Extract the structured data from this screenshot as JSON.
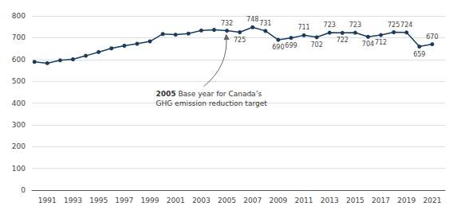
{
  "chart_data": {
    "type": "line",
    "x": [
      1990,
      1991,
      1992,
      1993,
      1994,
      1995,
      1996,
      1997,
      1998,
      1999,
      2000,
      2001,
      2002,
      2003,
      2004,
      2005,
      2006,
      2007,
      2008,
      2009,
      2010,
      2011,
      2012,
      2013,
      2014,
      2015,
      2016,
      2017,
      2018,
      2019,
      2020,
      2021
    ],
    "values": [
      589,
      583,
      596,
      601,
      617,
      634,
      651,
      663,
      672,
      683,
      717,
      714,
      719,
      733,
      736,
      732,
      725,
      748,
      731,
      690,
      699,
      711,
      702,
      723,
      722,
      723,
      704,
      712,
      725,
      724,
      659,
      670
    ],
    "value_labels": [
      null,
      null,
      null,
      null,
      null,
      null,
      null,
      null,
      null,
      null,
      null,
      null,
      null,
      null,
      null,
      "732",
      "725",
      "748",
      "731",
      "690",
      "699",
      "711",
      "702",
      "723",
      "722",
      "723",
      "704",
      "712",
      "725",
      "724",
      "659",
      "670"
    ],
    "color": "#1b3a5c",
    "marker": "circle",
    "xlim": [
      1989.8,
      2022.0
    ],
    "xticks": [
      1991,
      1993,
      1995,
      1997,
      1999,
      2001,
      2003,
      2005,
      2007,
      2009,
      2011,
      2013,
      2015,
      2017,
      2019,
      2021
    ],
    "ylim": [
      0,
      800
    ],
    "yticks": [
      0,
      100,
      200,
      300,
      400,
      500,
      600,
      700,
      800
    ],
    "grid": true,
    "annotation": {
      "bold": "2005",
      "text": " Base year for Canada’s\nGHG emission reduction target"
    }
  }
}
